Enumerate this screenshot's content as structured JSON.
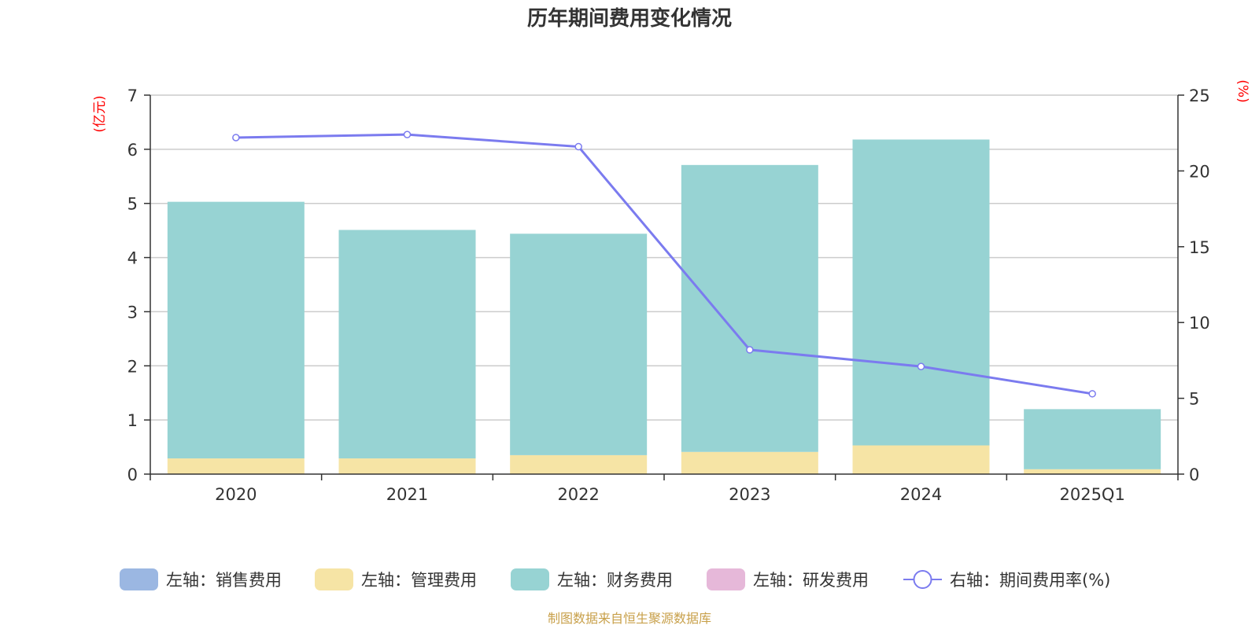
{
  "chart_data": {
    "type": "bar",
    "title": "历年期间费用变化情况",
    "categories": [
      "2020",
      "2021",
      "2022",
      "2023",
      "2024",
      "2025Q1"
    ],
    "left_axis": {
      "unit": "(亿元)",
      "ylim": [
        0,
        7
      ],
      "ticks": [
        "0",
        "1",
        "2",
        "3",
        "4",
        "5",
        "6",
        "7"
      ]
    },
    "right_axis": {
      "unit": "(%)",
      "ylim": [
        0,
        25
      ],
      "ticks": [
        "0",
        "5",
        "10",
        "15",
        "20",
        "25"
      ]
    },
    "series": [
      {
        "name": "左轴：销售费用",
        "axis": "left",
        "kind": "bar",
        "color": "#9bb7e2",
        "values": [
          0,
          0,
          0,
          0,
          0,
          0
        ]
      },
      {
        "name": "左轴：管理费用",
        "axis": "left",
        "kind": "bar",
        "color": "#f6e4a5",
        "values": [
          0.29,
          0.29,
          0.35,
          0.41,
          0.53,
          0.09
        ]
      },
      {
        "name": "左轴：财务费用",
        "axis": "left",
        "kind": "bar",
        "color": "#97d3d3",
        "values": [
          4.74,
          4.22,
          4.09,
          5.3,
          5.65,
          1.11
        ]
      },
      {
        "name": "左轴：研发费用",
        "axis": "left",
        "kind": "bar",
        "color": "#e6b8d9",
        "values": [
          0,
          0,
          0,
          0,
          0,
          0
        ]
      },
      {
        "name": "右轴：期间费用率(%)",
        "axis": "right",
        "kind": "line",
        "color": "#7b7bef",
        "values": [
          22.2,
          22.4,
          21.6,
          8.2,
          7.1,
          5.3
        ]
      }
    ],
    "legend_position": "bottom",
    "grid": true
  },
  "source_note": "制图数据来自恒生聚源数据库"
}
